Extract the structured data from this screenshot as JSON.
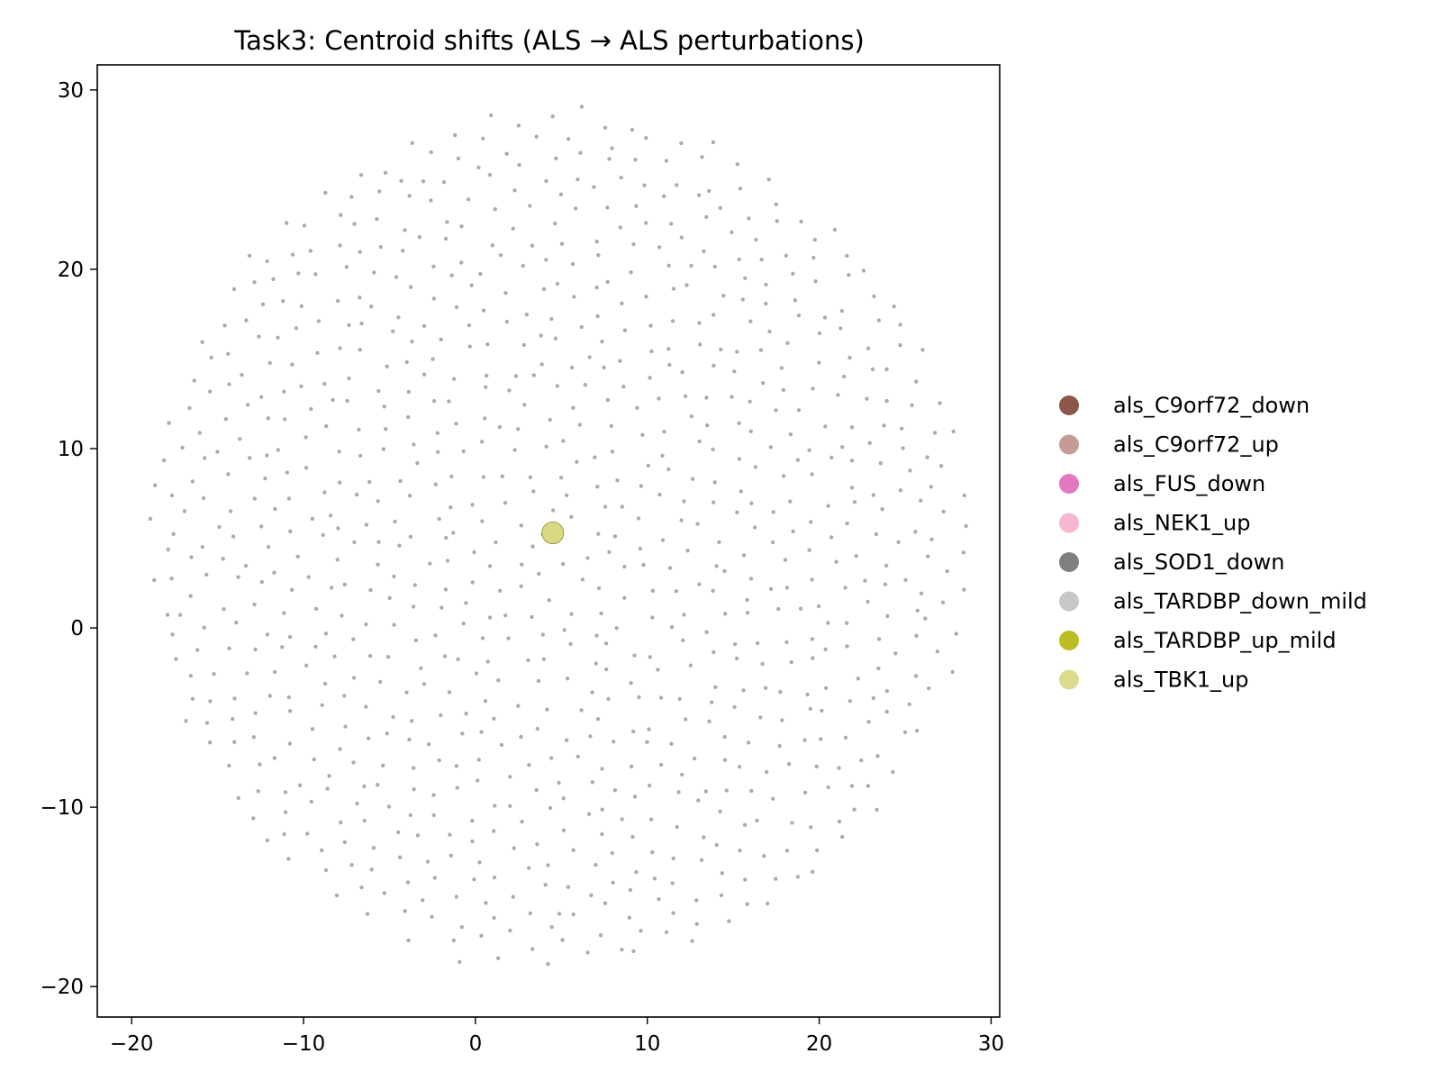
{
  "chart_data": {
    "type": "scatter",
    "title": "Task3: Centroid shifts (ALS → ALS perturbations)",
    "xlabel": "",
    "ylabel": "",
    "xlim": [
      -22,
      30.5
    ],
    "ylim": [
      -21.7,
      31.4
    ],
    "xticks": [
      -20,
      -10,
      0,
      10,
      20,
      30
    ],
    "yticks": [
      -20,
      -10,
      0,
      10,
      20,
      30
    ],
    "xtick_labels": [
      "−20",
      "−10",
      "0",
      "10",
      "20",
      "30"
    ],
    "ytick_labels": [
      "−20",
      "−10",
      "0",
      "10",
      "20",
      "30"
    ],
    "grid": false,
    "legend_position": "right",
    "background_points": {
      "description_color": "#7f7f7f",
      "cloud_center": [
        4.8,
        4.8
      ],
      "cloud_radius": 24,
      "approx_count": 900
    },
    "series": [
      {
        "name": "als_C9orf72_down",
        "color": "#8c564b",
        "x": [
          4.5
        ],
        "y": [
          5.3
        ]
      },
      {
        "name": "als_C9orf72_up",
        "color": "#c49c94",
        "x": [
          4.5
        ],
        "y": [
          5.3
        ]
      },
      {
        "name": "als_FUS_down",
        "color": "#e377c2",
        "x": [
          4.5
        ],
        "y": [
          5.3
        ]
      },
      {
        "name": "als_NEK1_up",
        "color": "#f7b6d2",
        "x": [
          4.5
        ],
        "y": [
          5.3
        ]
      },
      {
        "name": "als_SOD1_down",
        "color": "#7f7f7f",
        "x": [
          4.5
        ],
        "y": [
          5.3
        ]
      },
      {
        "name": "als_TARDBP_down_mild",
        "color": "#c7c7c7",
        "x": [
          4.5
        ],
        "y": [
          5.3
        ]
      },
      {
        "name": "als_TARDBP_up_mild",
        "color": "#bcbd22",
        "x": [
          4.5
        ],
        "y": [
          5.3
        ]
      },
      {
        "name": "als_TBK1_up",
        "color": "#dbdb8d",
        "x": [
          4.5
        ],
        "y": [
          5.3
        ]
      }
    ]
  }
}
